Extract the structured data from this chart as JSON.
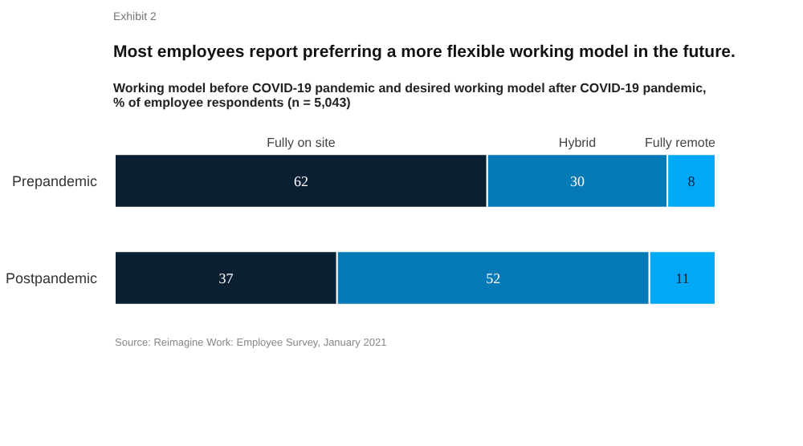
{
  "chart_data": {
    "type": "bar",
    "orientation": "horizontal",
    "stacked": true,
    "data_labels": true,
    "title": "Most employees report preferring a more flexible working model in the future.",
    "subtitle": "Working model before COVID-19 pandemic and desired working model after COVID-19 pandemic,\n% of employee respondents (n = 5,043)",
    "annotations": [
      "Exhibit 2",
      "Source: Reimagine Work: Employee Survey, January 2021"
    ],
    "categories": [
      "Prepandemic",
      "Postpandemic"
    ],
    "series": [
      {
        "name": "Fully on site",
        "color": "#0b1f33",
        "values": [
          62,
          37
        ]
      },
      {
        "name": "Hybrid",
        "color": "#0679b7",
        "values": [
          30,
          52
        ]
      },
      {
        "name": "Fully remote",
        "color": "#00a9f4",
        "values": [
          8,
          11
        ]
      }
    ]
  }
}
